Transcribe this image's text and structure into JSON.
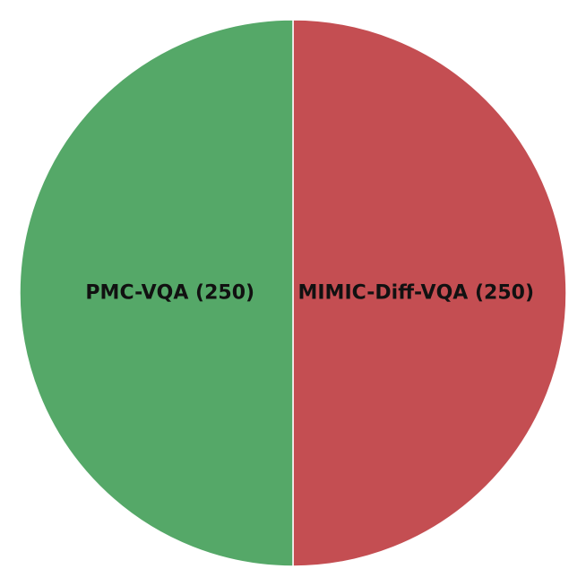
{
  "chart_data": {
    "type": "pie",
    "title": "",
    "slices": [
      {
        "label": "MIMIC-Diff-VQA",
        "value": 250,
        "display": "MIMIC-Diff-VQA (250)",
        "color": "#c44e52"
      },
      {
        "label": "PMC-VQA",
        "value": 250,
        "display": "PMC-VQA (250)",
        "color": "#55a868"
      }
    ],
    "legend": "none",
    "start": "top",
    "direction": "clockwise"
  }
}
